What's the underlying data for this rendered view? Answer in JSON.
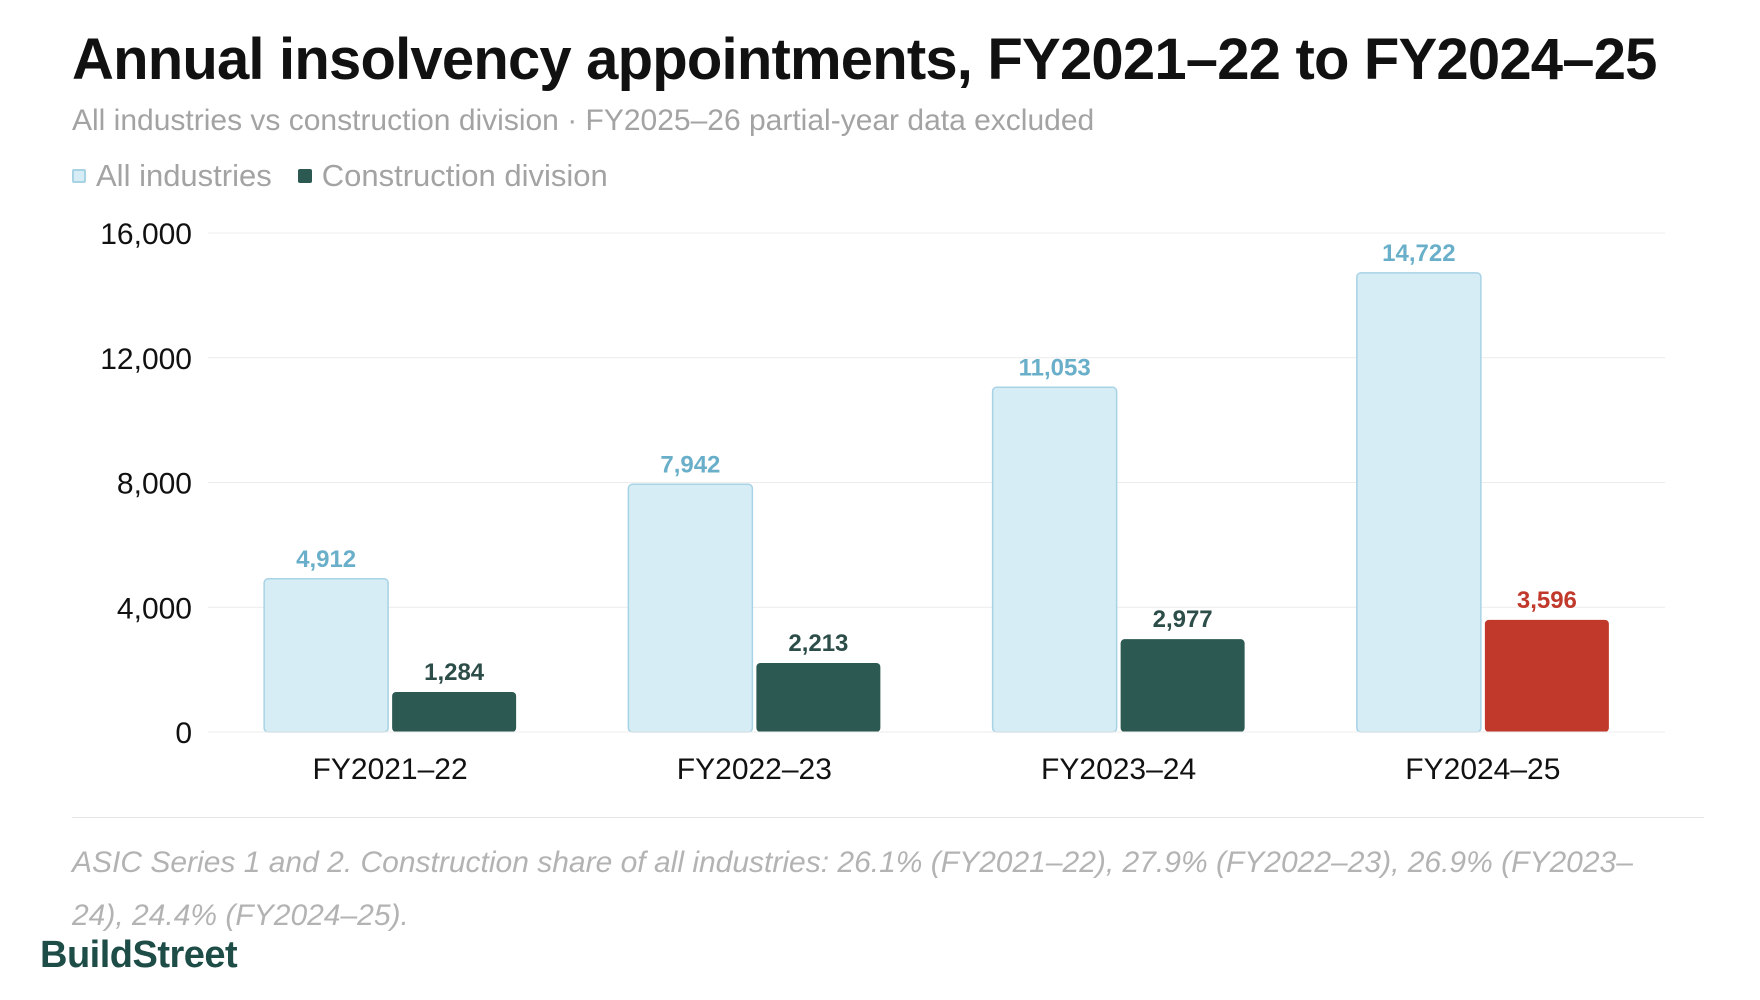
{
  "chart_data": {
    "type": "bar",
    "title": "Annual insolvency appointments, FY2021–22 to FY2024–25",
    "subtitle": "All industries vs construction division · FY2025–26 partial-year data excluded",
    "categories": [
      "FY2021–22",
      "FY2022–23",
      "FY2023–24",
      "FY2024–25"
    ],
    "series": [
      {
        "name": "All industries",
        "values": [
          4912,
          7942,
          11053,
          14722
        ],
        "labels": [
          "4,912",
          "7,942",
          "11,053",
          "14,722"
        ],
        "color": "#d6edf6",
        "stroke": "#a8d3e5",
        "label_color": "#6aafca"
      },
      {
        "name": "Construction division",
        "values": [
          1284,
          2213,
          2977,
          3596
        ],
        "labels": [
          "1,284",
          "2,213",
          "2,977",
          "3,596"
        ],
        "color": "#2c5a53",
        "label_color": "#2c4d48",
        "highlight_index": 3,
        "highlight_color": "#c0392b"
      }
    ],
    "ylim": [
      0,
      16000
    ],
    "yticks": [
      0,
      4000,
      8000,
      12000,
      16000
    ],
    "ytick_labels": [
      "0",
      "4,000",
      "8,000",
      "12,000",
      "16,000"
    ],
    "xlabel": "",
    "ylabel": "",
    "grid": true,
    "legend": "top-left"
  },
  "footnote": "ASIC Series 1 and 2. Construction share of all industries: 26.1% (FY2021–22), 27.9% (FY2022–23), 26.9% (FY2023–24), 24.4% (FY2024–25).",
  "brand": "BuildStreet"
}
